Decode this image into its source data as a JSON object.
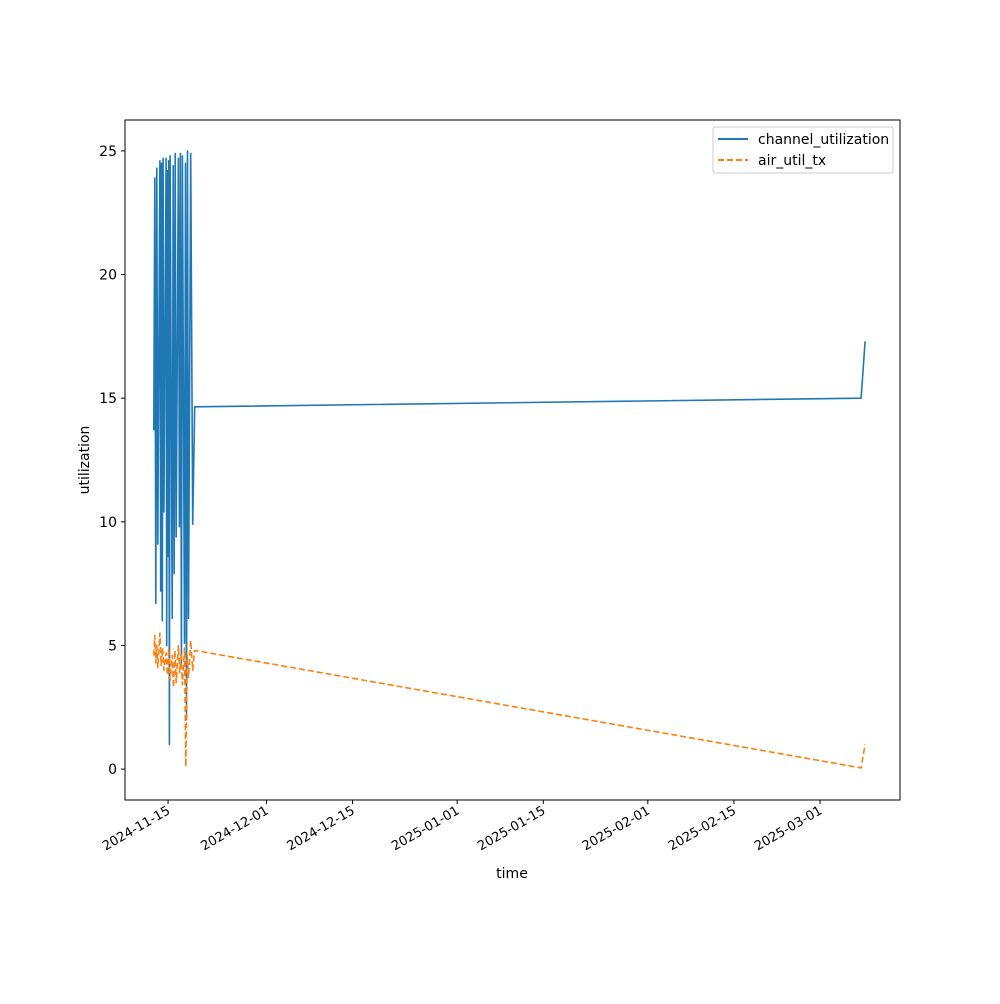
{
  "chart_data": {
    "type": "line",
    "title": "",
    "xlabel": "time",
    "ylabel": "utilization",
    "x_range": [
      "2024-11-08",
      "2025-03-14"
    ],
    "ylim": [
      -1.25,
      26.25
    ],
    "x_ticks": [
      "2024-11-15",
      "2024-12-01",
      "2024-12-15",
      "2025-01-01",
      "2025-01-15",
      "2025-02-01",
      "2025-02-15",
      "2025-03-01"
    ],
    "y_ticks": [
      0,
      5,
      10,
      15,
      20,
      25
    ],
    "grid": false,
    "legend_position": "top-right",
    "series": [
      {
        "name": "channel_utilization",
        "color": "#1f77b4",
        "style": "solid",
        "points": [
          [
            "2024-11-13",
            13.7
          ],
          [
            "2024-11-13",
            23.9
          ],
          [
            "2024-11-13",
            6.7
          ],
          [
            "2024-11-13",
            24.3
          ],
          [
            "2024-11-13",
            9.1
          ],
          [
            "2024-11-14",
            24.6
          ],
          [
            "2024-11-14",
            7.2
          ],
          [
            "2024-11-14",
            24.5
          ],
          [
            "2024-11-14",
            6.0
          ],
          [
            "2024-11-14",
            24.7
          ],
          [
            "2024-11-14",
            10.4
          ],
          [
            "2024-11-15",
            24.7
          ],
          [
            "2024-11-15",
            5.0
          ],
          [
            "2024-11-15",
            24.2
          ],
          [
            "2024-11-15",
            8.6
          ],
          [
            "2024-11-15",
            24.6
          ],
          [
            "2024-11-15",
            1.0
          ],
          [
            "2024-11-15",
            24.8
          ],
          [
            "2024-11-16",
            6.1
          ],
          [
            "2024-11-16",
            24.4
          ],
          [
            "2024-11-16",
            7.9
          ],
          [
            "2024-11-16",
            24.9
          ],
          [
            "2024-11-16",
            9.4
          ],
          [
            "2024-11-17",
            24.7
          ],
          [
            "2024-11-17",
            9.8
          ],
          [
            "2024-11-17",
            24.9
          ],
          [
            "2024-11-17",
            4.3
          ],
          [
            "2024-11-17",
            24.8
          ],
          [
            "2024-11-18",
            5.1
          ],
          [
            "2024-11-18",
            24.5
          ],
          [
            "2024-11-18",
            2.0
          ],
          [
            "2024-11-18",
            25.0
          ],
          [
            "2024-11-18",
            6.1
          ],
          [
            "2024-11-19",
            24.9
          ],
          [
            "2024-11-19",
            9.9
          ],
          [
            "2024-11-19",
            14.65
          ],
          [
            "2025-03-08",
            15.0
          ],
          [
            "2025-03-08",
            17.3
          ]
        ]
      },
      {
        "name": "air_util_tx",
        "color": "#ff7f0e",
        "style": "dashed",
        "points": [
          [
            "2024-11-13",
            4.6
          ],
          [
            "2024-11-13",
            5.4
          ],
          [
            "2024-11-13",
            4.3
          ],
          [
            "2024-11-13",
            5.0
          ],
          [
            "2024-11-13",
            4.1
          ],
          [
            "2024-11-14",
            5.5
          ],
          [
            "2024-11-14",
            4.2
          ],
          [
            "2024-11-14",
            4.9
          ],
          [
            "2024-11-14",
            4.0
          ],
          [
            "2024-11-15",
            4.7
          ],
          [
            "2024-11-15",
            3.8
          ],
          [
            "2024-11-15",
            4.9
          ],
          [
            "2024-11-15",
            3.6
          ],
          [
            "2024-11-16",
            4.6
          ],
          [
            "2024-11-16",
            3.3
          ],
          [
            "2024-11-16",
            4.8
          ],
          [
            "2024-11-16",
            3.5
          ],
          [
            "2024-11-17",
            5.0
          ],
          [
            "2024-11-17",
            3.9
          ],
          [
            "2024-11-17",
            4.7
          ],
          [
            "2024-11-17",
            3.4
          ],
          [
            "2024-11-18",
            4.9
          ],
          [
            "2024-11-18",
            0.1
          ],
          [
            "2024-11-18",
            4.6
          ],
          [
            "2024-11-18",
            3.7
          ],
          [
            "2024-11-19",
            5.2
          ],
          [
            "2024-11-19",
            4.0
          ],
          [
            "2024-11-19",
            4.8
          ],
          [
            "2025-03-08",
            0.05
          ],
          [
            "2025-03-08",
            1.0
          ]
        ]
      }
    ]
  }
}
